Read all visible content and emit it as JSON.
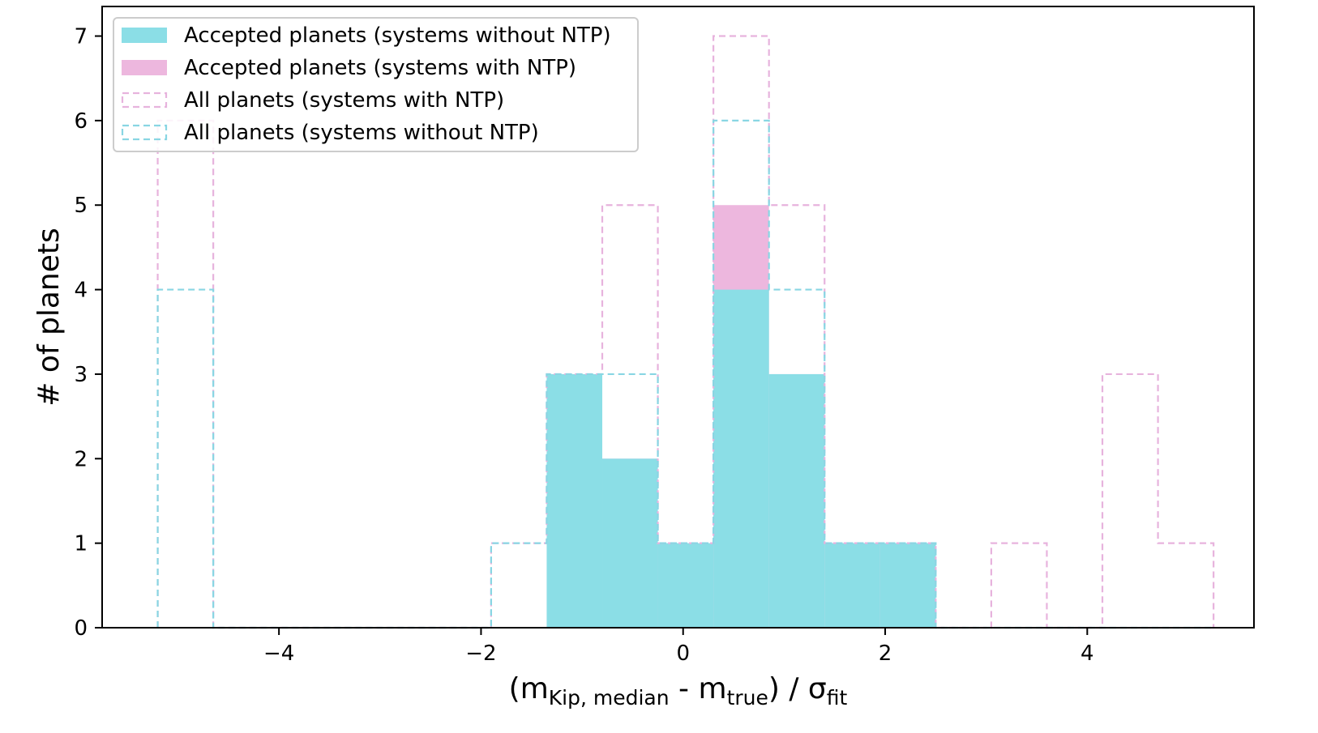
{
  "chart_data": {
    "type": "bar",
    "subtype": "histogram",
    "xlabel": {
      "main": "(m",
      "sub1": "Kip, median",
      "mid": " - m",
      "sub2": "true",
      "after": ") / σ",
      "sub3": "fit"
    },
    "ylabel": "# of planets",
    "xlim": [
      -5.75,
      5.65
    ],
    "ylim": [
      0,
      7.35
    ],
    "xticks": [
      {
        "v": -4,
        "label": "−4"
      },
      {
        "v": -2,
        "label": "−2"
      },
      {
        "v": 0,
        "label": "0"
      },
      {
        "v": 2,
        "label": "2"
      },
      {
        "v": 4,
        "label": "4"
      }
    ],
    "yticks": [
      0,
      1,
      2,
      3,
      4,
      5,
      6,
      7
    ],
    "bin_edges": [
      -5.2,
      -4.65,
      -4.1,
      -3.55,
      -3.0,
      -2.45,
      -1.9,
      -1.35,
      -0.8,
      -0.25,
      0.3,
      0.85,
      1.4,
      1.95,
      2.5,
      3.05,
      3.6,
      4.15,
      4.7,
      5.25
    ],
    "legend_position": "upper-left",
    "series": [
      {
        "name": "All planets (systems with NTP)",
        "style": "dashed",
        "color": "#e7b3dd",
        "values": [
          6,
          0,
          0,
          0,
          0,
          0,
          1,
          3,
          5,
          1,
          7,
          5,
          1,
          1,
          0,
          1,
          0,
          3,
          1
        ]
      },
      {
        "name": "All planets (systems without NTP)",
        "style": "dashed",
        "color": "#89d6e3",
        "values": [
          4,
          0,
          0,
          0,
          0,
          0,
          1,
          3,
          3,
          1,
          6,
          4,
          1,
          1,
          0,
          0,
          0,
          0,
          0
        ]
      },
      {
        "name": "Accepted planets (systems with NTP)",
        "style": "filled",
        "color": "#edb7de",
        "values": [
          0,
          0,
          0,
          0,
          0,
          0,
          0,
          3,
          2,
          1,
          5,
          3,
          1,
          1,
          0,
          0,
          0,
          0,
          0
        ]
      },
      {
        "name": "Accepted planets (systems without NTP)",
        "style": "filled",
        "color": "#8bdee6",
        "values": [
          0,
          0,
          0,
          0,
          0,
          0,
          0,
          3,
          2,
          1,
          4,
          3,
          1,
          1,
          0,
          0,
          0,
          0,
          0
        ]
      }
    ],
    "legend_order": [
      3,
      2,
      0,
      1
    ]
  }
}
